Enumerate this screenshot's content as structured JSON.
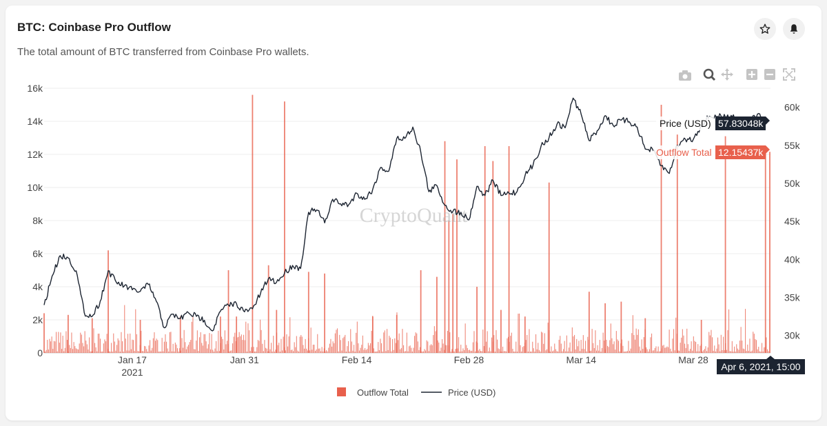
{
  "header": {
    "title": "BTC: Coinbase Pro Outflow",
    "subtitle": "The total amount of BTC transferred from Coinbase Pro wallets.",
    "star_icon": "star-icon",
    "bell_icon": "bell-icon"
  },
  "toolbar": {
    "icons": [
      "camera-icon",
      "zoom-icon",
      "pan-icon",
      "zoom-in-icon",
      "zoom-out-icon",
      "reset-axes-icon"
    ]
  },
  "watermark": "CryptoQuant",
  "colors": {
    "outflow": "#e8604c",
    "price": "#1c2431",
    "grid": "#ececec",
    "tooltip_price_bg": "#1c2431",
    "tooltip_outflow_bg": "#e8604c"
  },
  "tooltip": {
    "price_label": "Price (USD)",
    "price_value": "57.83048k",
    "outflow_label": "Outflow Total",
    "outflow_value": "12.15437k",
    "date": "Apr 6, 2021, 15:00",
    "price_usd": 57830,
    "outflow_btc": 12154
  },
  "chart_data": {
    "type": "bar+line",
    "x_range": [
      "2021-01-06",
      "2021-04-06"
    ],
    "x_ticks": [
      {
        "date": "2021-01-17",
        "label": "Jan 17",
        "sublabel": "2021"
      },
      {
        "date": "2021-01-31",
        "label": "Jan 31"
      },
      {
        "date": "2021-02-14",
        "label": "Feb 14"
      },
      {
        "date": "2021-02-28",
        "label": "Feb 28"
      },
      {
        "date": "2021-03-14",
        "label": "Mar 14"
      },
      {
        "date": "2021-03-28",
        "label": "Mar 28"
      }
    ],
    "y_left": {
      "range": [
        0,
        16000
      ],
      "ticks": [
        {
          "value": 0,
          "label": "0"
        },
        {
          "value": 2000,
          "label": "2k"
        },
        {
          "value": 4000,
          "label": "4k"
        },
        {
          "value": 6000,
          "label": "6k"
        },
        {
          "value": 8000,
          "label": "8k"
        },
        {
          "value": 10000,
          "label": "10k"
        },
        {
          "value": 12000,
          "label": "12k"
        },
        {
          "value": 14000,
          "label": "14k"
        },
        {
          "value": 16000,
          "label": "16k"
        }
      ]
    },
    "y_right": {
      "range": [
        27700,
        62500
      ],
      "ticks": [
        {
          "value": 30000,
          "label": "30k"
        },
        {
          "value": 35000,
          "label": "35k"
        },
        {
          "value": 40000,
          "label": "40k"
        },
        {
          "value": 45000,
          "label": "45k"
        },
        {
          "value": 50000,
          "label": "50k"
        },
        {
          "value": 55000,
          "label": "55k"
        },
        {
          "value": 60000,
          "label": "60k"
        }
      ]
    },
    "grid": true,
    "legend_position": "bottom-center",
    "series": [
      {
        "name": "Outflow Total",
        "type": "bar",
        "axis": "left",
        "color": "#e8604c",
        "spikes": [
          [
            "2021-01-06",
            2400
          ],
          [
            "2021-01-09",
            2300
          ],
          [
            "2021-01-12",
            2100
          ],
          [
            "2021-01-14",
            6200
          ],
          [
            "2021-01-18",
            2000
          ],
          [
            "2021-01-23",
            2200
          ],
          [
            "2021-01-28",
            2200
          ],
          [
            "2021-01-29",
            5000
          ],
          [
            "2021-01-30",
            2200
          ],
          [
            "2021-02-01",
            15600
          ],
          [
            "2021-02-03",
            5300
          ],
          [
            "2021-02-04",
            2600
          ],
          [
            "2021-02-05",
            15200
          ],
          [
            "2021-02-08",
            4900
          ],
          [
            "2021-02-10",
            4800
          ],
          [
            "2021-02-16",
            2200
          ],
          [
            "2021-02-19",
            2300
          ],
          [
            "2021-02-22",
            5000
          ],
          [
            "2021-02-24",
            4600
          ],
          [
            "2021-02-25",
            12800
          ],
          [
            "2021-02-25T12:00",
            8000
          ],
          [
            "2021-02-26",
            8400
          ],
          [
            "2021-02-26T12:00",
            11700
          ],
          [
            "2021-03-01",
            4000
          ],
          [
            "2021-03-02",
            12500
          ],
          [
            "2021-03-03",
            11600
          ],
          [
            "2021-03-04",
            2600
          ],
          [
            "2021-03-05",
            12500
          ],
          [
            "2021-03-07",
            2200
          ],
          [
            "2021-03-10",
            10300
          ],
          [
            "2021-03-15",
            3700
          ],
          [
            "2021-03-17",
            3000
          ],
          [
            "2021-03-19",
            3100
          ],
          [
            "2021-03-22",
            2100
          ],
          [
            "2021-03-24",
            15000
          ],
          [
            "2021-03-26",
            13200
          ],
          [
            "2021-03-29",
            2000
          ],
          [
            "2021-04-01",
            13100
          ],
          [
            "2021-04-06",
            12154
          ]
        ]
      },
      {
        "name": "Price (USD)",
        "type": "line",
        "axis": "right",
        "color": "#1c2431",
        "points": [
          [
            "2021-01-06",
            34000
          ],
          [
            "2021-01-07",
            37800
          ],
          [
            "2021-01-08",
            40500
          ],
          [
            "2021-01-09",
            40200
          ],
          [
            "2021-01-10",
            38500
          ],
          [
            "2021-01-11",
            33000
          ],
          [
            "2021-01-12",
            32500
          ],
          [
            "2021-01-13",
            34500
          ],
          [
            "2021-01-14",
            38500
          ],
          [
            "2021-01-15",
            37000
          ],
          [
            "2021-01-16",
            36500
          ],
          [
            "2021-01-17",
            36000
          ],
          [
            "2021-01-18",
            35800
          ],
          [
            "2021-01-19",
            36700
          ],
          [
            "2021-01-20",
            34500
          ],
          [
            "2021-01-21",
            31000
          ],
          [
            "2021-01-22",
            32800
          ],
          [
            "2021-01-23",
            32200
          ],
          [
            "2021-01-24",
            33000
          ],
          [
            "2021-01-25",
            32500
          ],
          [
            "2021-01-26",
            32000
          ],
          [
            "2021-01-27",
            30600
          ],
          [
            "2021-01-28",
            33200
          ],
          [
            "2021-01-29",
            34000
          ],
          [
            "2021-01-30",
            34200
          ],
          [
            "2021-01-31",
            33100
          ],
          [
            "2021-02-01",
            33500
          ],
          [
            "2021-02-02",
            35500
          ],
          [
            "2021-02-03",
            37500
          ],
          [
            "2021-02-04",
            37000
          ],
          [
            "2021-02-05",
            38200
          ],
          [
            "2021-02-06",
            39200
          ],
          [
            "2021-02-07",
            38800
          ],
          [
            "2021-02-08",
            46200
          ],
          [
            "2021-02-09",
            46500
          ],
          [
            "2021-02-10",
            44800
          ],
          [
            "2021-02-11",
            47900
          ],
          [
            "2021-02-12",
            47300
          ],
          [
            "2021-02-13",
            47200
          ],
          [
            "2021-02-14",
            48700
          ],
          [
            "2021-02-15",
            47900
          ],
          [
            "2021-02-16",
            49200
          ],
          [
            "2021-02-17",
            52100
          ],
          [
            "2021-02-18",
            51600
          ],
          [
            "2021-02-19",
            55900
          ],
          [
            "2021-02-20",
            55900
          ],
          [
            "2021-02-21",
            57400
          ],
          [
            "2021-02-22",
            54100
          ],
          [
            "2021-02-23",
            48900
          ],
          [
            "2021-02-24",
            49700
          ],
          [
            "2021-02-25",
            47100
          ],
          [
            "2021-02-26",
            46300
          ],
          [
            "2021-02-27",
            46200
          ],
          [
            "2021-02-28",
            45200
          ],
          [
            "2021-03-01",
            49600
          ],
          [
            "2021-03-02",
            48400
          ],
          [
            "2021-03-03",
            50400
          ],
          [
            "2021-03-04",
            48400
          ],
          [
            "2021-03-05",
            48700
          ],
          [
            "2021-03-06",
            48900
          ],
          [
            "2021-03-07",
            51000
          ],
          [
            "2021-03-08",
            52400
          ],
          [
            "2021-03-09",
            54900
          ],
          [
            "2021-03-10",
            56000
          ],
          [
            "2021-03-11",
            57800
          ],
          [
            "2021-03-12",
            57300
          ],
          [
            "2021-03-13",
            61200
          ],
          [
            "2021-03-14",
            59100
          ],
          [
            "2021-03-15",
            55600
          ],
          [
            "2021-03-16",
            56900
          ],
          [
            "2021-03-17",
            58900
          ],
          [
            "2021-03-18",
            57600
          ],
          [
            "2021-03-19",
            58300
          ],
          [
            "2021-03-20",
            58100
          ],
          [
            "2021-03-21",
            57400
          ],
          [
            "2021-03-22",
            54500
          ],
          [
            "2021-03-23",
            54300
          ],
          [
            "2021-03-24",
            52300
          ],
          [
            "2021-03-25",
            51300
          ],
          [
            "2021-03-26",
            55000
          ],
          [
            "2021-03-27",
            55800
          ],
          [
            "2021-03-28",
            55800
          ],
          [
            "2021-03-29",
            57600
          ],
          [
            "2021-03-30",
            58800
          ],
          [
            "2021-03-31",
            58800
          ],
          [
            "2021-04-01",
            58700
          ],
          [
            "2021-04-02",
            59000
          ],
          [
            "2021-04-03",
            57100
          ],
          [
            "2021-04-04",
            58200
          ],
          [
            "2021-04-05",
            59100
          ],
          [
            "2021-04-06",
            57830
          ]
        ]
      }
    ]
  }
}
